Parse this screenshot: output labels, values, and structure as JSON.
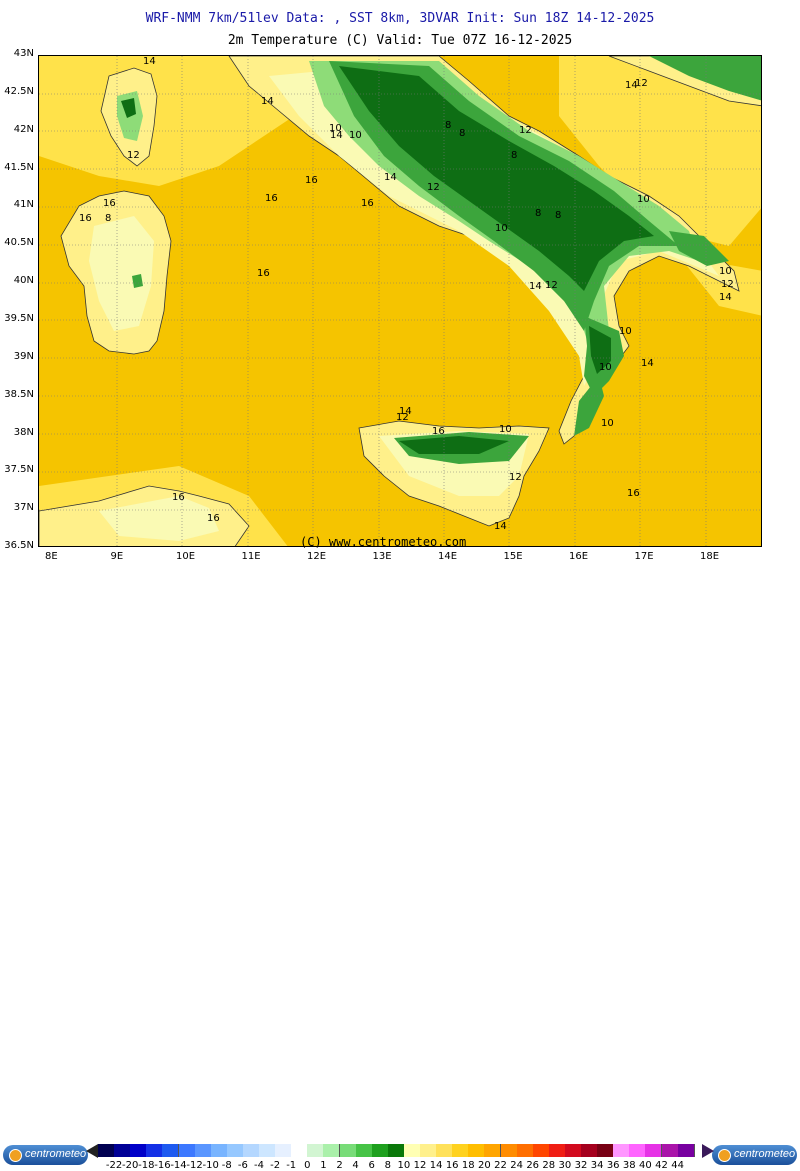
{
  "header": {
    "line1": "WRF-NMM 7km/51lev  Data: , SST 8km, 3DVAR  Init: Sun 18Z 14-12-2025",
    "line2": "2m Temperature (C)  Valid: Tue 07Z 16-12-2025"
  },
  "lat_labels": [
    "43N",
    "42.5N",
    "42N",
    "41.5N",
    "41N",
    "40.5N",
    "40N",
    "39.5N",
    "39N",
    "38.5N",
    "38N",
    "37.5N",
    "37N",
    "36.5N"
  ],
  "lon_labels": [
    "8E",
    "9E",
    "10E",
    "11E",
    "12E",
    "13E",
    "14E",
    "15E",
    "16E",
    "17E",
    "18E"
  ],
  "copyright": "(C) www.centrometeo.com",
  "brand": "centrometeo",
  "map_colors": {
    "sea": "#f5c400",
    "sea_light": "#ffe24a",
    "land_warm": "#fff08a",
    "land_mid": "#fafab4",
    "land_cool": "#e6f3b4",
    "green_light": "#8edc78",
    "green_mid": "#3ca53c",
    "green_dark": "#0e6e14"
  },
  "contour_labels": [
    "14",
    "14",
    "14",
    "12",
    "16",
    "16",
    "16",
    "16",
    "16",
    "16",
    "14",
    "14",
    "12",
    "12",
    "10",
    "10",
    "10",
    "10",
    "10",
    "10",
    "10",
    "8",
    "8",
    "8",
    "8",
    "8",
    "8",
    "12",
    "12",
    "12",
    "14",
    "14",
    "14",
    "12",
    "14",
    "16",
    "16",
    "10",
    "10",
    "12",
    "14",
    "16",
    "16"
  ],
  "legend": {
    "ticks": [
      "-22",
      "-20",
      "-18",
      "-16",
      "-14",
      "-12",
      "-10",
      "-8",
      "-6",
      "-4",
      "-2",
      "-1",
      "0",
      "1",
      "2",
      "4",
      "6",
      "8",
      "10",
      "12",
      "14",
      "16",
      "18",
      "20",
      "22",
      "24",
      "26",
      "28",
      "30",
      "32",
      "34",
      "36",
      "38",
      "40",
      "42",
      "44"
    ],
    "colors": [
      "#000050",
      "#000096",
      "#0000c8",
      "#1430e6",
      "#1e5af0",
      "#3c78ff",
      "#5a96ff",
      "#78b4ff",
      "#96c8ff",
      "#b4d7ff",
      "#cde6ff",
      "#e6f0ff",
      "#ffffff",
      "#d2f5d2",
      "#aaf0aa",
      "#78dc78",
      "#46c346",
      "#1ea01e",
      "#0a780a",
      "#ffffb4",
      "#fff08c",
      "#ffe15a",
      "#ffd21e",
      "#ffbe00",
      "#ffa500",
      "#ff8c00",
      "#ff6e00",
      "#ff4600",
      "#f01e14",
      "#d20a1e",
      "#a5001e",
      "#780014",
      "#ff96ff",
      "#ff64ff",
      "#e632e6",
      "#aa14aa",
      "#7800a0"
    ]
  }
}
